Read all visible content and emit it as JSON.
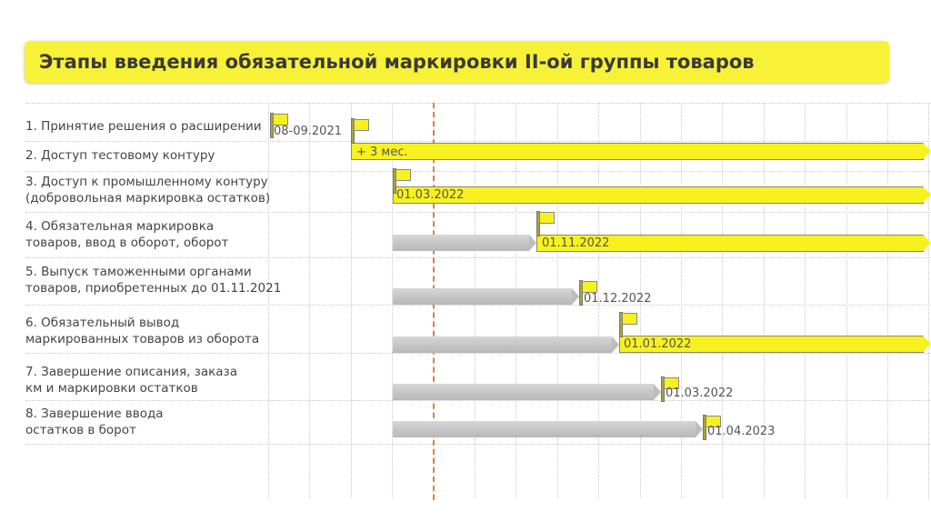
{
  "title": "Этапы введения обязательной маркировки II-ой группы товаров",
  "colors": {
    "accent": "#f7f237",
    "bar_yellow": "#f7f21f",
    "bar_gray": "#c4c4c4",
    "today_line": "#e0803a"
  },
  "rows": [
    {
      "label": "1. Принятие решения о расширении",
      "date": "08-09.2021"
    },
    {
      "label": "2. Доступ тестовому контуру",
      "date": "+ 3 мес."
    },
    {
      "label": "3. Доступ к промышленному контуру\n(добровольная маркировка остатков)",
      "date": "01.03.2022"
    },
    {
      "label": "4. Обязательная маркировка\nтоваров, ввод в оборот, оборот",
      "date": "01.11.2022"
    },
    {
      "label": "5. Выпуск таможенными органами\nтоваров, приобретенных до 01.11.2021",
      "date": "01.12.2022"
    },
    {
      "label": "6. Обязательный вывод\nмаркированных товаров из оборота",
      "date": "01.01.2022"
    },
    {
      "label": "7. Завершение описания, заказа\nкм и маркировки остатков",
      "date": "01.03.2022"
    },
    {
      "label": "8. Завершение ввода\nостатков в борот",
      "date": "01.04.2023"
    }
  ]
}
